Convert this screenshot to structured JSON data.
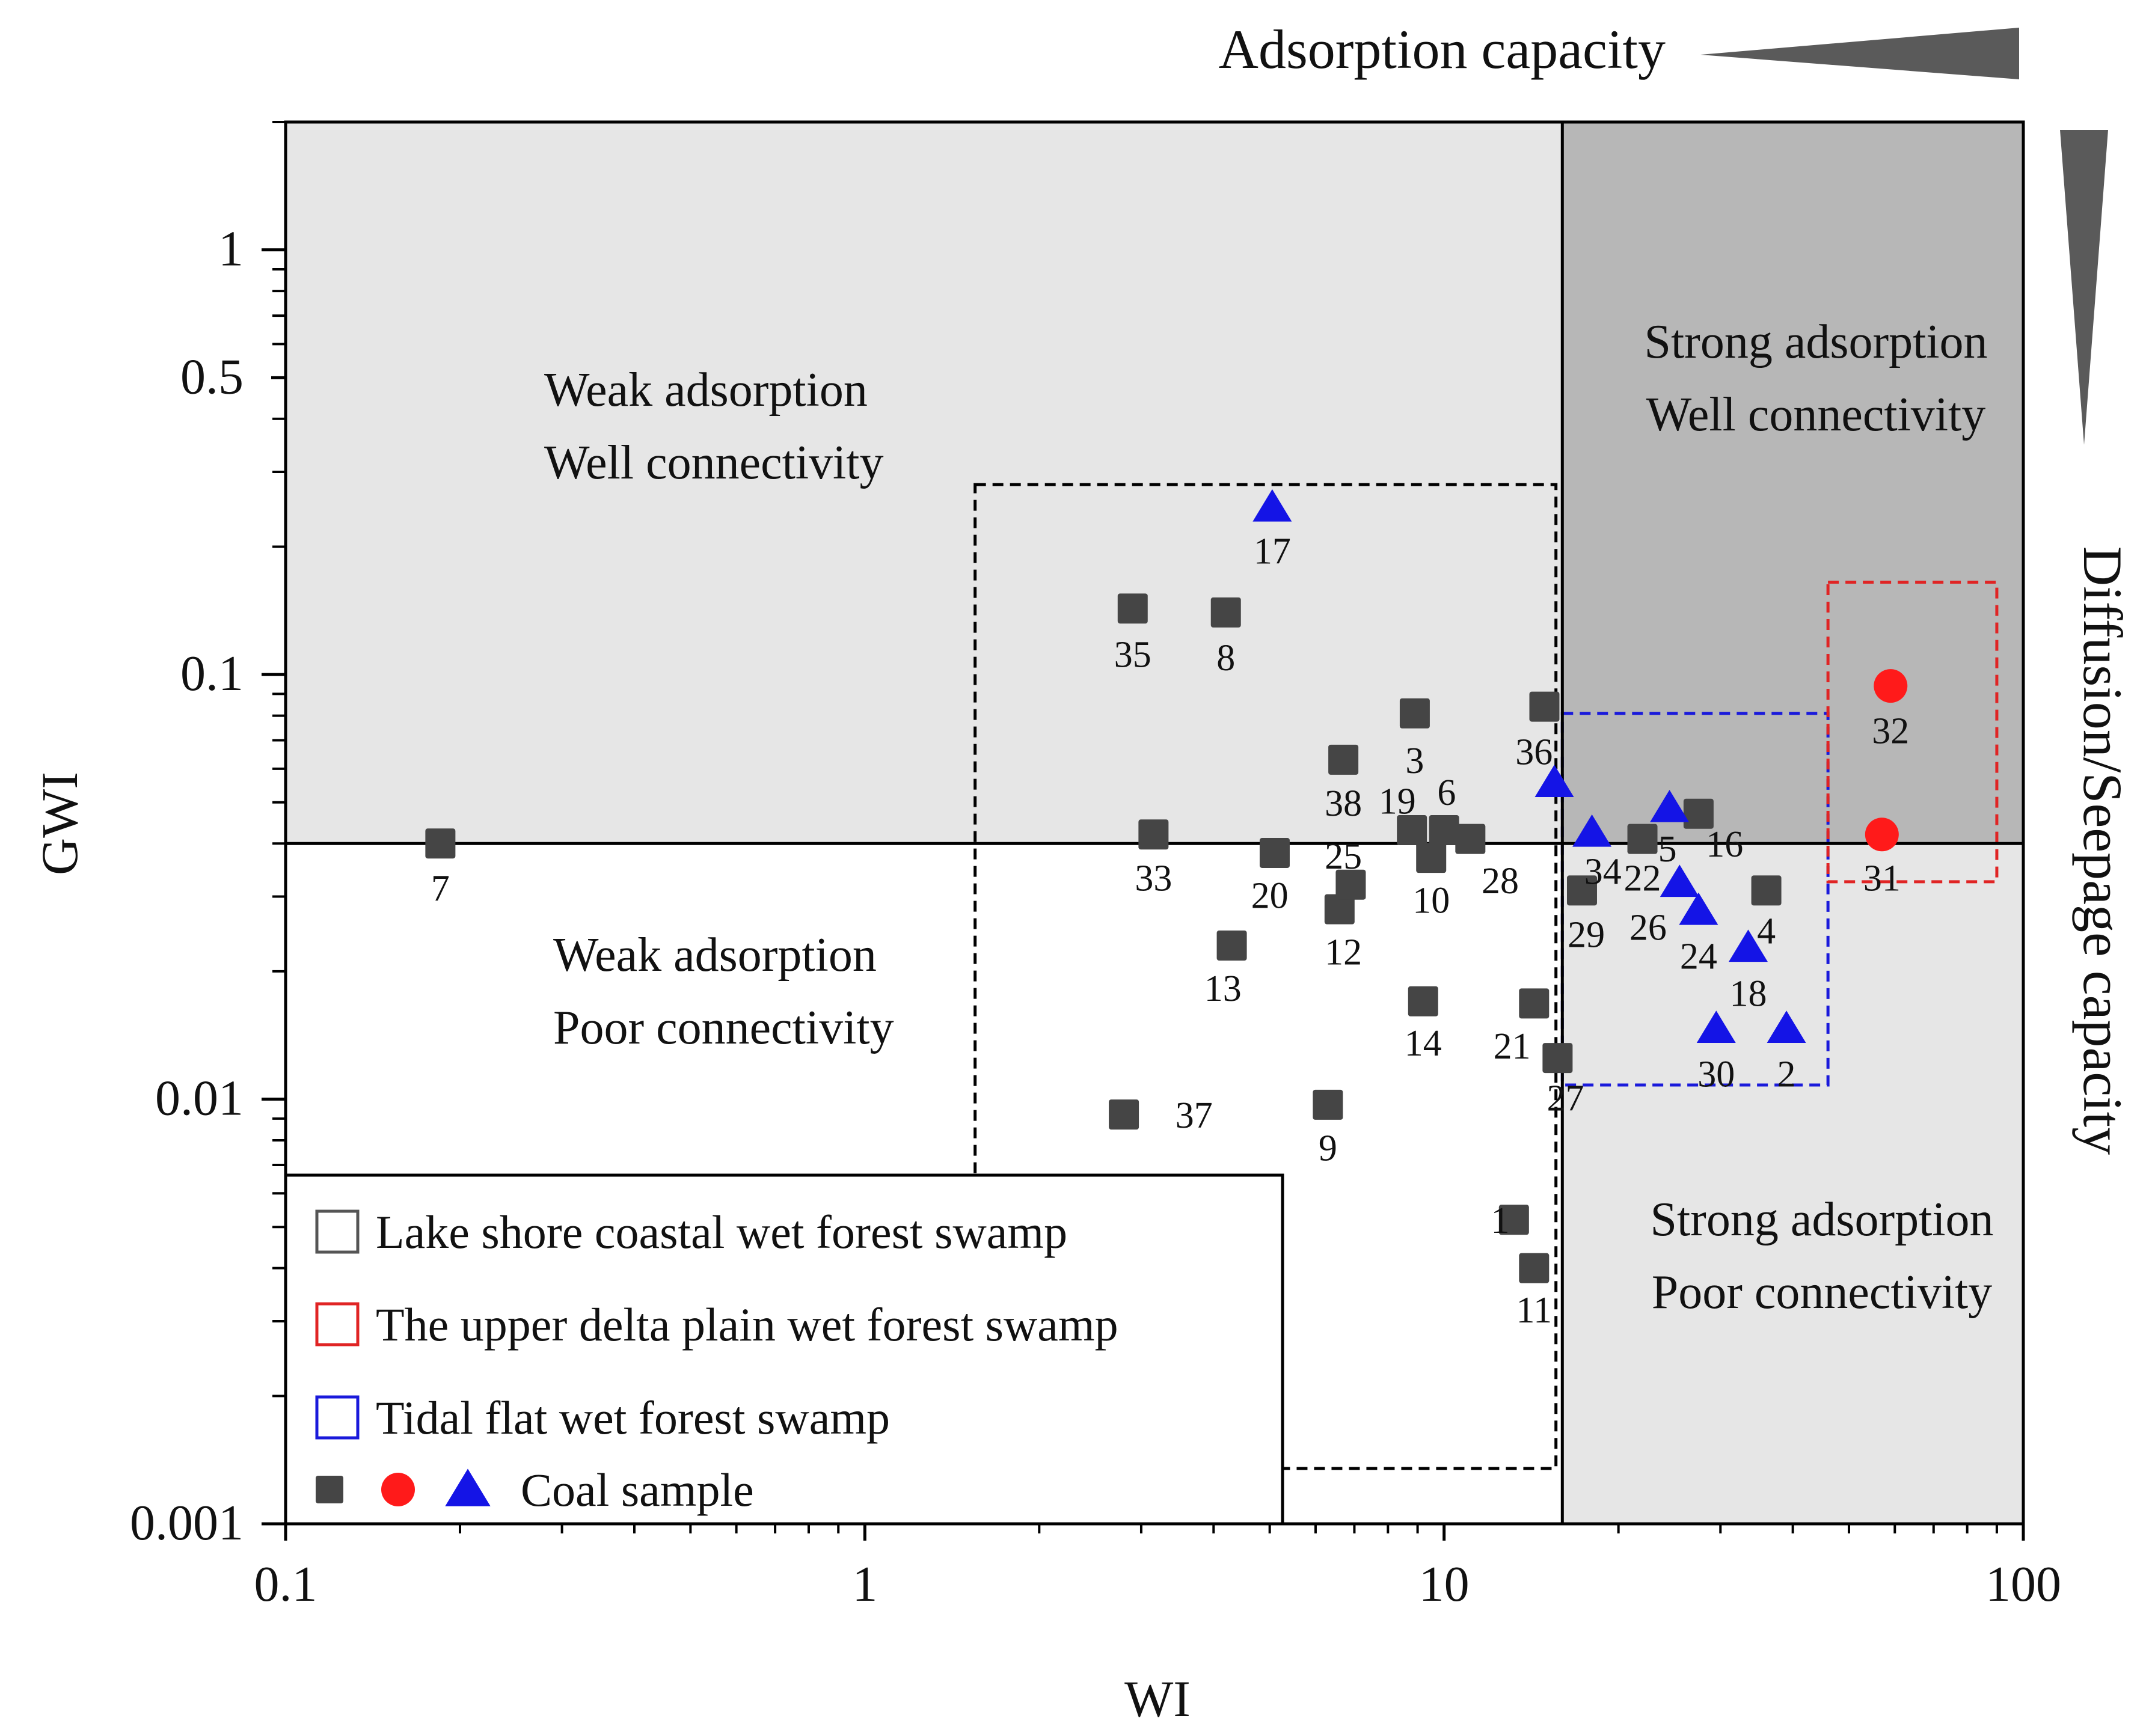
{
  "chart_data": {
    "type": "scatter",
    "title": "",
    "xlabel": "WI",
    "ylabel": "GWI",
    "xscale": "log",
    "yscale": "log",
    "xlim": [
      0.1,
      100
    ],
    "ylim": [
      0.001,
      2
    ],
    "x_ticks": [
      {
        "value": 0.1,
        "label": "0.1"
      },
      {
        "value": 1,
        "label": "1"
      },
      {
        "value": 10,
        "label": "10"
      },
      {
        "value": 100,
        "label": "100"
      }
    ],
    "y_ticks": [
      {
        "value": 0.001,
        "label": "0.001"
      },
      {
        "value": 0.01,
        "label": "0.01"
      },
      {
        "value": 0.1,
        "label": "0.1"
      },
      {
        "value": 0.5,
        "label": "0.5"
      },
      {
        "value": 1,
        "label": "1"
      }
    ],
    "grid": false,
    "thresholds": {
      "wi": 16,
      "gwi": 0.04
    },
    "quadrants": [
      {
        "id": "weak-well",
        "lines": [
          "Weak adsorption",
          "Well connectivity"
        ],
        "color": "#e6e6e6"
      },
      {
        "id": "strong-well",
        "lines": [
          "Strong adsorption",
          "Well connectivity"
        ],
        "color": "#b7b7b7"
      },
      {
        "id": "weak-poor",
        "lines": [
          "Weak adsorption",
          "Poor connectivity"
        ],
        "color": "#ffffff"
      },
      {
        "id": "strong-poor",
        "lines": [
          "Strong adsorption",
          "Poor connectivity"
        ],
        "color": "#e6e6e6"
      }
    ],
    "indicators": {
      "adsorption": "Adsorption capacity",
      "diffusion": "Diffusion/Seepage capacity",
      "arrow_color": "#5a5a5a"
    },
    "regions": [
      {
        "name": "Lake shore coastal wet forest swamp",
        "color": "#000000",
        "x": [
          1.55,
          15.6
        ],
        "y": [
          0.00135,
          0.28
        ]
      },
      {
        "name": "Tidal flat wet forest swamp",
        "color": "#1a1adb",
        "x": [
          16,
          46
        ],
        "y": [
          0.0108,
          0.081
        ]
      },
      {
        "name": "The upper delta plain wet forest swamp",
        "color": "#e02424",
        "x": [
          46,
          90
        ],
        "y": [
          0.0325,
          0.165
        ]
      }
    ],
    "series": [
      {
        "name": "Coal sample",
        "marker": "square",
        "color": "#454545",
        "points": [
          {
            "id": "1",
            "x": 13.2,
            "y": 0.0052
          },
          {
            "id": "3",
            "x": 8.9,
            "y": 0.081
          },
          {
            "id": "4",
            "x": 36,
            "y": 0.031
          },
          {
            "id": "6",
            "x": 10,
            "y": 0.043
          },
          {
            "id": "7",
            "x": 0.185,
            "y": 0.04
          },
          {
            "id": "8",
            "x": 4.2,
            "y": 0.14
          },
          {
            "id": "9",
            "x": 6.3,
            "y": 0.0097
          },
          {
            "id": "10",
            "x": 9.5,
            "y": 0.037
          },
          {
            "id": "11",
            "x": 14.3,
            "y": 0.004
          },
          {
            "id": "12",
            "x": 6.6,
            "y": 0.028
          },
          {
            "id": "13",
            "x": 4.3,
            "y": 0.023
          },
          {
            "id": "14",
            "x": 9.2,
            "y": 0.017
          },
          {
            "id": "16",
            "x": 27.5,
            "y": 0.047
          },
          {
            "id": "19",
            "x": 8.8,
            "y": 0.043
          },
          {
            "id": "20",
            "x": 5.1,
            "y": 0.038
          },
          {
            "id": "21",
            "x": 14.3,
            "y": 0.0168
          },
          {
            "id": "22",
            "x": 22,
            "y": 0.041
          },
          {
            "id": "25",
            "x": 6.9,
            "y": 0.032
          },
          {
            "id": "27",
            "x": 15.7,
            "y": 0.0125
          },
          {
            "id": "28",
            "x": 11.1,
            "y": 0.041
          },
          {
            "id": "29",
            "x": 17.3,
            "y": 0.031
          },
          {
            "id": "33",
            "x": 3.15,
            "y": 0.042
          },
          {
            "id": "35",
            "x": 2.9,
            "y": 0.143
          },
          {
            "id": "36",
            "x": 14.9,
            "y": 0.084
          },
          {
            "id": "37",
            "x": 2.8,
            "y": 0.0092
          },
          {
            "id": "38",
            "x": 6.7,
            "y": 0.063
          }
        ]
      },
      {
        "name": "Coal sample",
        "marker": "circle",
        "color": "#ff1a1a",
        "points": [
          {
            "id": "31",
            "x": 57,
            "y": 0.042
          },
          {
            "id": "32",
            "x": 59,
            "y": 0.094
          }
        ]
      },
      {
        "name": "Coal sample",
        "marker": "triangle",
        "color": "#1414e6",
        "points": [
          {
            "id": "2",
            "x": 39,
            "y": 0.0145
          },
          {
            "id": "5",
            "x": 24.5,
            "y": 0.048
          },
          {
            "id": "17",
            "x": 5.05,
            "y": 0.245
          },
          {
            "id": "18",
            "x": 33.5,
            "y": 0.0225
          },
          {
            "id": "24",
            "x": 27.5,
            "y": 0.0275
          },
          {
            "id": "26",
            "x": 25.5,
            "y": 0.032
          },
          {
            "id": "30",
            "x": 29.5,
            "y": 0.0145
          },
          {
            "id": "34",
            "x": 18,
            "y": 0.042
          },
          {
            "id": "u1",
            "x": 15.5,
            "y": 0.055
          }
        ]
      }
    ],
    "point_labels": [
      {
        "text": "1",
        "x": 12.5,
        "y": 0.0052
      },
      {
        "text": "2",
        "x": 39,
        "y": 0.0115
      },
      {
        "text": "3",
        "x": 8.9,
        "y": 0.063
      },
      {
        "text": "4",
        "x": 36,
        "y": 0.025
      },
      {
        "text": "5",
        "x": 24.3,
        "y": 0.039
      },
      {
        "text": "6",
        "x": 10.1,
        "y": 0.053
      },
      {
        "text": "7",
        "x": 0.185,
        "y": 0.0315
      },
      {
        "text": "8",
        "x": 4.2,
        "y": 0.11
      },
      {
        "text": "9",
        "x": 6.3,
        "y": 0.0077
      },
      {
        "text": "10",
        "x": 9.5,
        "y": 0.0295
      },
      {
        "text": "11",
        "x": 14.3,
        "y": 0.0032
      },
      {
        "text": "12",
        "x": 6.7,
        "y": 0.0223
      },
      {
        "text": "13",
        "x": 4.15,
        "y": 0.0183
      },
      {
        "text": "14",
        "x": 9.2,
        "y": 0.0136
      },
      {
        "text": "16",
        "x": 30.5,
        "y": 0.04
      },
      {
        "text": "17",
        "x": 5.05,
        "y": 0.196
      },
      {
        "text": "18",
        "x": 33.5,
        "y": 0.0178
      },
      {
        "text": "19",
        "x": 8.3,
        "y": 0.0505
      },
      {
        "text": "20",
        "x": 5.0,
        "y": 0.0303
      },
      {
        "text": "21",
        "x": 13.1,
        "y": 0.0134
      },
      {
        "text": "22",
        "x": 22,
        "y": 0.0333
      },
      {
        "text": "24",
        "x": 27.5,
        "y": 0.0218
      },
      {
        "text": "25",
        "x": 6.7,
        "y": 0.0375
      },
      {
        "text": "26",
        "x": 22.5,
        "y": 0.0255
      },
      {
        "text": "27",
        "x": 16.2,
        "y": 0.0101
      },
      {
        "text": "28",
        "x": 12.5,
        "y": 0.0328
      },
      {
        "text": "29",
        "x": 17.6,
        "y": 0.0245
      },
      {
        "text": "30",
        "x": 29.5,
        "y": 0.0115
      },
      {
        "text": "31",
        "x": 57,
        "y": 0.0333
      },
      {
        "text": "32",
        "x": 59,
        "y": 0.074
      },
      {
        "text": "33",
        "x": 3.15,
        "y": 0.0333
      },
      {
        "text": "34",
        "x": 18.8,
        "y": 0.0345
      },
      {
        "text": "35",
        "x": 2.9,
        "y": 0.112
      },
      {
        "text": "36",
        "x": 14.3,
        "y": 0.066
      },
      {
        "text": "37",
        "x": 3.7,
        "y": 0.0092
      },
      {
        "text": "38",
        "x": 6.7,
        "y": 0.05
      }
    ],
    "legend": {
      "position": "bottom-left",
      "entries": [
        {
          "kind": "box",
          "color": "#555555",
          "label": "Lake shore coastal wet forest swamp"
        },
        {
          "kind": "box",
          "color": "#e02424",
          "label": "The upper delta plain wet forest swamp"
        },
        {
          "kind": "box",
          "color": "#1a1adb",
          "label": "Tidal flat wet forest swamp"
        },
        {
          "kind": "markers",
          "label": "Coal sample"
        }
      ]
    }
  }
}
